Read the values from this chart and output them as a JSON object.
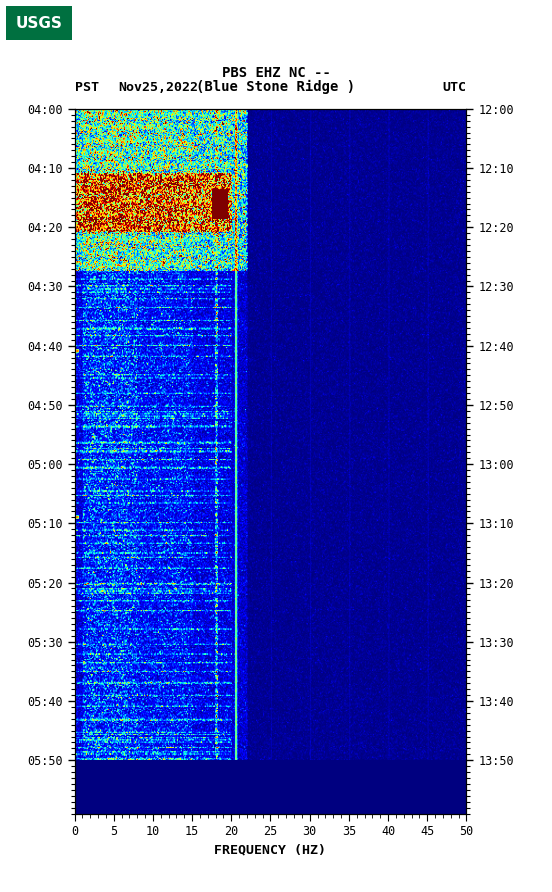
{
  "title_line1": "PBS EHZ NC --",
  "title_line2": "(Blue Stone Ridge )",
  "left_label": "PST",
  "right_label": "UTC",
  "date_label": "Nov25,2022",
  "xlabel": "FREQUENCY (HZ)",
  "freq_min": 0,
  "freq_max": 50,
  "freq_ticks": [
    0,
    5,
    10,
    15,
    20,
    25,
    30,
    35,
    40,
    45,
    50
  ],
  "left_yticks": [
    "04:00",
    "04:10",
    "04:20",
    "04:30",
    "04:40",
    "04:50",
    "05:00",
    "05:10",
    "05:20",
    "05:30",
    "05:40",
    "05:50"
  ],
  "right_yticks": [
    "12:00",
    "12:10",
    "12:20",
    "12:30",
    "12:40",
    "12:50",
    "13:00",
    "13:10",
    "13:20",
    "13:30",
    "13:40",
    "13:50"
  ],
  "plot_bg": "#000080",
  "fig_bg": "#ffffff",
  "usgs_green": "#007040",
  "figsize": [
    5.52,
    8.92
  ],
  "dpi": 100
}
